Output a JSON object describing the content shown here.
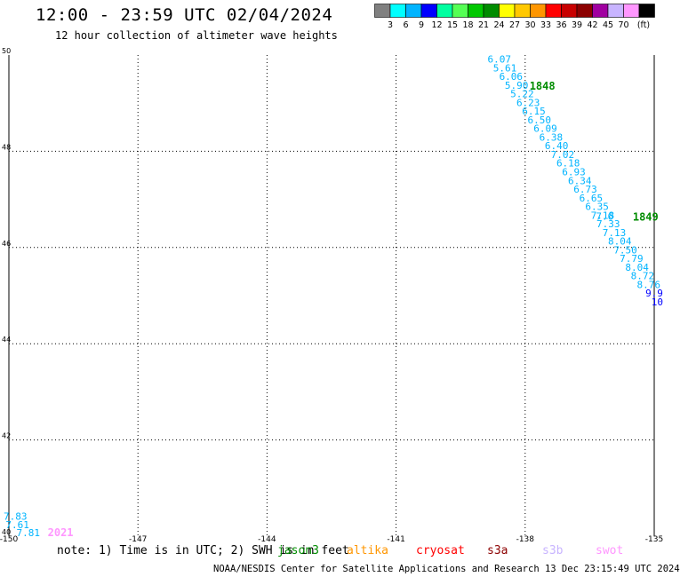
{
  "title": "12:00 - 23:59 UTC 02/04/2024",
  "subtitle": "12 hour collection of altimeter wave heights",
  "color_scale": {
    "unit": "(ft)",
    "bins": [
      {
        "color": "#808080",
        "label": ""
      },
      {
        "color": "#00ffff",
        "label": "3"
      },
      {
        "color": "#00b4ff",
        "label": "6"
      },
      {
        "color": "#0000ff",
        "label": "9"
      },
      {
        "color": "#00ffa0",
        "label": "12"
      },
      {
        "color": "#55ff55",
        "label": "15"
      },
      {
        "color": "#00c800",
        "label": "18"
      },
      {
        "color": "#008c00",
        "label": "21"
      },
      {
        "color": "#ffff00",
        "label": "24"
      },
      {
        "color": "#ffc800",
        "label": "27"
      },
      {
        "color": "#ff9600",
        "label": "30"
      },
      {
        "color": "#ff0000",
        "label": "33"
      },
      {
        "color": "#c80000",
        "label": "36"
      },
      {
        "color": "#8c0000",
        "label": "39"
      },
      {
        "color": "#a000a0",
        "label": "42"
      },
      {
        "color": "#c8b4ff",
        "label": "45"
      },
      {
        "color": "#ff96ff",
        "label": "70"
      },
      {
        "color": "#000000",
        "label": ""
      }
    ]
  },
  "chart_data": {
    "type": "scatter",
    "xlim": [
      -150,
      -135
    ],
    "ylim": [
      40,
      50
    ],
    "x_ticks": [
      "-150",
      "-147",
      "-144",
      "-141",
      "-138",
      "-135"
    ],
    "y_ticks": [
      "40",
      "42",
      "44",
      "46",
      "48",
      "50"
    ],
    "grid": true,
    "track_a_color": "#00b4ff",
    "track_a": [
      {
        "lon": -138.6,
        "lat": 49.84,
        "v": "6.07"
      },
      {
        "lon": -138.47,
        "lat": 49.66,
        "v": "5.61"
      },
      {
        "lon": -138.33,
        "lat": 49.48,
        "v": "6.06"
      },
      {
        "lon": -138.2,
        "lat": 49.3,
        "v": "5.90"
      },
      {
        "lon": -138.07,
        "lat": 49.12,
        "v": "5.22"
      },
      {
        "lon": -137.93,
        "lat": 48.94,
        "v": "6.23"
      },
      {
        "lon": -137.8,
        "lat": 48.76,
        "v": "6.15"
      },
      {
        "lon": -137.67,
        "lat": 48.58,
        "v": "6.50"
      },
      {
        "lon": -137.53,
        "lat": 48.4,
        "v": "6.09"
      },
      {
        "lon": -137.4,
        "lat": 48.22,
        "v": "6.38"
      },
      {
        "lon": -137.27,
        "lat": 48.04,
        "v": "6.40"
      },
      {
        "lon": -137.13,
        "lat": 47.86,
        "v": "7.02"
      },
      {
        "lon": -137.0,
        "lat": 47.68,
        "v": "6.18"
      },
      {
        "lon": -136.87,
        "lat": 47.5,
        "v": "6.93"
      },
      {
        "lon": -136.73,
        "lat": 47.32,
        "v": "6.34"
      },
      {
        "lon": -136.6,
        "lat": 47.14,
        "v": "6.73"
      },
      {
        "lon": -136.47,
        "lat": 46.96,
        "v": "6.65"
      },
      {
        "lon": -136.33,
        "lat": 46.78,
        "v": "6.35"
      },
      {
        "lon": -136.2,
        "lat": 46.6,
        "v": "7.18"
      },
      {
        "lon": -136.07,
        "lat": 46.42,
        "v": "7.33"
      },
      {
        "lon": -135.93,
        "lat": 46.24,
        "v": "7.13"
      },
      {
        "lon": -135.8,
        "lat": 46.06,
        "v": "8.04"
      },
      {
        "lon": -135.67,
        "lat": 45.88,
        "v": "7.50"
      },
      {
        "lon": -135.53,
        "lat": 45.7,
        "v": "7.79"
      },
      {
        "lon": -135.4,
        "lat": 45.52,
        "v": "8.04"
      },
      {
        "lon": -135.27,
        "lat": 45.34,
        "v": "8.72"
      },
      {
        "lon": -135.13,
        "lat": 45.16,
        "v": "8.76"
      }
    ],
    "track_a_tail": [
      {
        "lon": -135.0,
        "lat": 44.98,
        "v": "9.9",
        "color": "#0000ff"
      },
      {
        "lon": -134.93,
        "lat": 44.8,
        "v": "10",
        "color": "#0000ff"
      },
      {
        "lon": -136.15,
        "lat": 46.58,
        "v": "7.6",
        "color": "#00b4ff"
      }
    ],
    "track_b_color": "#00b4ff",
    "track_b": [
      {
        "lon": -149.85,
        "lat": 40.34,
        "v": "7.83"
      },
      {
        "lon": -149.8,
        "lat": 40.17,
        "v": "7.61"
      },
      {
        "lon": -149.55,
        "lat": 40.0,
        "v": "7.81"
      }
    ],
    "time_labels": [
      {
        "lon": -137.6,
        "lat": 49.28,
        "text": "1848",
        "color": "#008c00"
      },
      {
        "lon": -135.2,
        "lat": 46.56,
        "text": "1849",
        "color": "#008c00"
      },
      {
        "lon": -148.8,
        "lat": 40.0,
        "text": "2021",
        "color": "#ff96ff"
      }
    ]
  },
  "note": "note: 1) Time is in UTC; 2) SWH is in feet",
  "satellites": [
    {
      "name": "jason3",
      "color": "#008c00"
    },
    {
      "name": "altika",
      "color": "#ff9600"
    },
    {
      "name": "cryosat",
      "color": "#ff0000"
    },
    {
      "name": "s3a",
      "color": "#8c0000"
    },
    {
      "name": "s3b",
      "color": "#c8b4ff"
    },
    {
      "name": "swot",
      "color": "#ff96ff"
    }
  ],
  "footer": "NOAA/NESDIS Center for Satellite Applications and Research   13 Dec 23:15:49 UTC 2024"
}
